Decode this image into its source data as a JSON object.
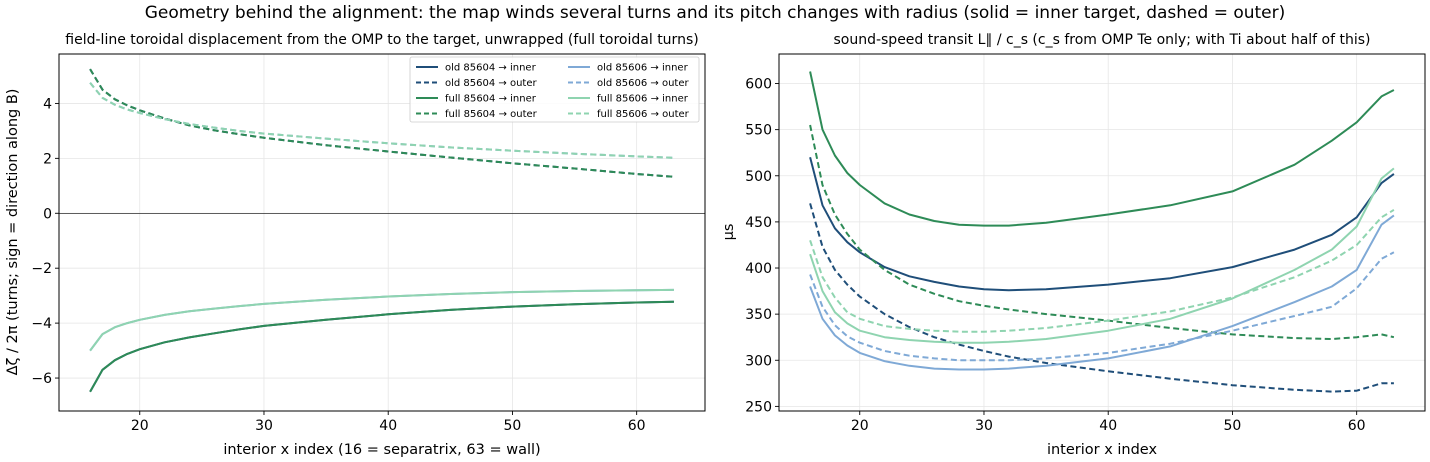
{
  "suptitle": "Geometry behind the alignment: the map winds several turns and its pitch changes with radius (solid = inner target, dashed = outer)",
  "colors": {
    "old85604": "#1f4e79",
    "full85604": "#2e8b57",
    "old85606": "#7fa9d6",
    "full85606": "#8fd4b0"
  },
  "chart_data": [
    {
      "type": "line",
      "title": "field-line toroidal displacement from the OMP to the target, unwrapped (full toroidal turns)",
      "xlabel": "interior x index (16 = separatrix, 63 = wall)",
      "ylabel": "Δζ / 2π  (turns; sign = direction along B)",
      "xlim": [
        13.5,
        65.5
      ],
      "ylim": [
        -7.2,
        5.8
      ],
      "xticks": [
        20,
        30,
        40,
        50,
        60
      ],
      "yticks": [
        -6,
        -4,
        -2,
        0,
        2,
        4
      ],
      "grid": true,
      "zero_line": true,
      "legend": "upper-right, 2 columns",
      "x": [
        16,
        17,
        18,
        19,
        20,
        22,
        24,
        26,
        28,
        30,
        35,
        40,
        45,
        50,
        55,
        60,
        63
      ],
      "series": [
        {
          "name": "old 85604 → inner",
          "color_key": "old85604",
          "dash": false,
          "values": [
            -6.5,
            -5.7,
            -5.35,
            -5.12,
            -4.95,
            -4.7,
            -4.52,
            -4.37,
            -4.23,
            -4.1,
            -3.88,
            -3.68,
            -3.52,
            -3.4,
            -3.31,
            -3.25,
            -3.22
          ]
        },
        {
          "name": "old 85604 → outer",
          "color_key": "old85604",
          "dash": true,
          "values": [
            5.25,
            4.5,
            4.15,
            3.93,
            3.75,
            3.45,
            3.2,
            3.02,
            2.88,
            2.75,
            2.48,
            2.25,
            2.03,
            1.82,
            1.63,
            1.43,
            1.33
          ]
        },
        {
          "name": "full 85604 → inner",
          "color_key": "full85604",
          "dash": false,
          "values": [
            -6.5,
            -5.7,
            -5.35,
            -5.12,
            -4.95,
            -4.7,
            -4.52,
            -4.37,
            -4.23,
            -4.1,
            -3.88,
            -3.68,
            -3.52,
            -3.4,
            -3.31,
            -3.25,
            -3.22
          ]
        },
        {
          "name": "full 85604 → outer",
          "color_key": "full85604",
          "dash": true,
          "values": [
            5.25,
            4.5,
            4.15,
            3.93,
            3.75,
            3.45,
            3.2,
            3.02,
            2.88,
            2.75,
            2.48,
            2.25,
            2.03,
            1.82,
            1.63,
            1.43,
            1.33
          ]
        },
        {
          "name": "old 85606 → inner",
          "color_key": "old85606",
          "dash": false,
          "values": [
            -5.0,
            -4.4,
            -4.15,
            -4.0,
            -3.88,
            -3.7,
            -3.57,
            -3.47,
            -3.38,
            -3.3,
            -3.15,
            -3.03,
            -2.94,
            -2.87,
            -2.83,
            -2.8,
            -2.79
          ]
        },
        {
          "name": "old 85606 → outer",
          "color_key": "old85606",
          "dash": true,
          "values": [
            4.75,
            4.2,
            3.95,
            3.78,
            3.65,
            3.43,
            3.25,
            3.12,
            3.0,
            2.9,
            2.72,
            2.55,
            2.4,
            2.28,
            2.17,
            2.07,
            2.02
          ]
        },
        {
          "name": "full 85606 → inner",
          "color_key": "full85606",
          "dash": false,
          "values": [
            -5.0,
            -4.4,
            -4.15,
            -4.0,
            -3.88,
            -3.7,
            -3.57,
            -3.47,
            -3.38,
            -3.3,
            -3.15,
            -3.03,
            -2.94,
            -2.87,
            -2.83,
            -2.8,
            -2.79
          ]
        },
        {
          "name": "full 85606 → outer",
          "color_key": "full85606",
          "dash": true,
          "values": [
            4.75,
            4.2,
            3.95,
            3.78,
            3.65,
            3.43,
            3.25,
            3.12,
            3.0,
            2.9,
            2.72,
            2.55,
            2.4,
            2.28,
            2.17,
            2.07,
            2.02
          ]
        }
      ]
    },
    {
      "type": "line",
      "title": "sound-speed transit L∥ / c_s  (c_s from OMP Te only; with Ti about half of this)",
      "xlabel": "interior x index",
      "ylabel": "μs",
      "xlim": [
        13.5,
        65.5
      ],
      "ylim": [
        245,
        632
      ],
      "xticks": [
        20,
        30,
        40,
        50,
        60
      ],
      "yticks": [
        250,
        300,
        350,
        400,
        450,
        500,
        550,
        600
      ],
      "grid": true,
      "x": [
        16,
        17,
        18,
        19,
        20,
        22,
        24,
        26,
        28,
        30,
        32,
        35,
        40,
        45,
        50,
        55,
        58,
        60,
        62,
        63
      ],
      "series": [
        {
          "name": "old 85604 → inner",
          "color_key": "old85604",
          "dash": false,
          "values": [
            520,
            468,
            443,
            428,
            417,
            401,
            391,
            385,
            380,
            377,
            376,
            377,
            382,
            389,
            401,
            420,
            436,
            455,
            492,
            502
          ]
        },
        {
          "name": "old 85604 → outer",
          "color_key": "old85604",
          "dash": true,
          "values": [
            470,
            423,
            398,
            382,
            369,
            350,
            336,
            325,
            317,
            310,
            304,
            297,
            288,
            280,
            273,
            268,
            266,
            267,
            275,
            275
          ]
        },
        {
          "name": "full 85604 → inner",
          "color_key": "full85604",
          "dash": false,
          "values": [
            613,
            550,
            522,
            503,
            490,
            470,
            458,
            451,
            447,
            446,
            446,
            449,
            458,
            468,
            483,
            512,
            538,
            558,
            586,
            593
          ]
        },
        {
          "name": "full 85604 → outer",
          "color_key": "full85604",
          "dash": true,
          "values": [
            555,
            490,
            458,
            437,
            420,
            398,
            382,
            372,
            364,
            359,
            355,
            350,
            343,
            335,
            328,
            324,
            323,
            325,
            328,
            325
          ]
        },
        {
          "name": "old 85606 → inner",
          "color_key": "old85606",
          "dash": false,
          "values": [
            380,
            345,
            327,
            316,
            308,
            299,
            294,
            291,
            290,
            290,
            291,
            294,
            302,
            315,
            337,
            363,
            380,
            398,
            447,
            457
          ]
        },
        {
          "name": "old 85606 → outer",
          "color_key": "old85606",
          "dash": true,
          "values": [
            393,
            358,
            338,
            326,
            319,
            310,
            305,
            302,
            300,
            300,
            300,
            302,
            308,
            318,
            332,
            348,
            358,
            378,
            410,
            417
          ]
        },
        {
          "name": "full 85606 → inner",
          "color_key": "full85606",
          "dash": false,
          "values": [
            415,
            375,
            352,
            340,
            332,
            325,
            322,
            320,
            319,
            319,
            320,
            323,
            332,
            345,
            367,
            398,
            420,
            445,
            497,
            508
          ]
        },
        {
          "name": "full 85606 → outer",
          "color_key": "full85606",
          "dash": true,
          "values": [
            430,
            390,
            368,
            352,
            345,
            337,
            334,
            332,
            331,
            331,
            332,
            335,
            343,
            353,
            368,
            390,
            408,
            425,
            455,
            463
          ]
        }
      ]
    }
  ]
}
